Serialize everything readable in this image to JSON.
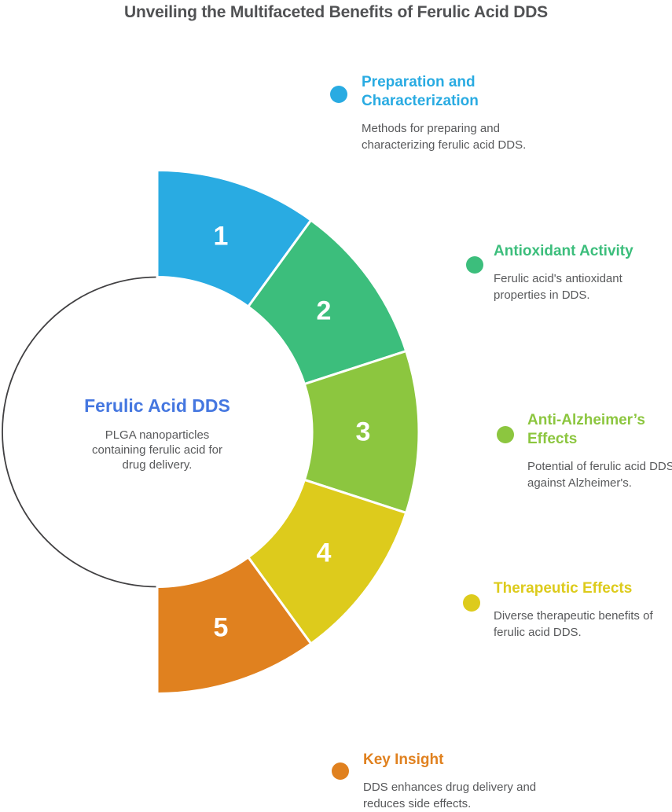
{
  "page_title": "Unveiling the Multifaceted Benefits of Ferulic Acid DDS",
  "colors": {
    "title_text": "#515254",
    "body_text": "#58595B",
    "center_title": "#4577E0",
    "circle_outline": "#414042"
  },
  "center": {
    "title": "Ferulic Acid DDS",
    "description": "PLGA nanoparticles containing ferulic acid for drug delivery."
  },
  "chart_data": {
    "type": "pie",
    "subtype": "semicircular_donut",
    "title": "Unveiling the Multifaceted Benefits of Ferulic Acid DDS",
    "center_label": "Ferulic Acid DDS",
    "center_description": "PLGA nanoparticles containing ferulic acid for drug delivery.",
    "start_angle_deg": 0,
    "end_angle_deg": 180,
    "legend_position": "right",
    "segments": [
      {
        "number": "1",
        "value": 1,
        "color": "#29ABE2",
        "title": "Preparation and Characterization",
        "description": "Methods for preparing and characterizing ferulic acid DDS."
      },
      {
        "number": "2",
        "value": 1,
        "color": "#3CBE7C",
        "title": "Antioxidant Activity",
        "description": "Ferulic acid's antioxidant properties in DDS."
      },
      {
        "number": "3",
        "value": 1,
        "color": "#8CC63F",
        "title": "Anti-Alzheimer’s Effects",
        "description": "Potential of ferulic acid DDS against Alzheimer's."
      },
      {
        "number": "4",
        "value": 1,
        "color": "#DDCB1C",
        "title": "Therapeutic Effects",
        "description": "Diverse therapeutic benefits of ferulic acid DDS."
      },
      {
        "number": "5",
        "value": 1,
        "color": "#E0811F",
        "title": "Key Insight",
        "description": "DDS enhances drug delivery and reduces side effects."
      }
    ]
  }
}
